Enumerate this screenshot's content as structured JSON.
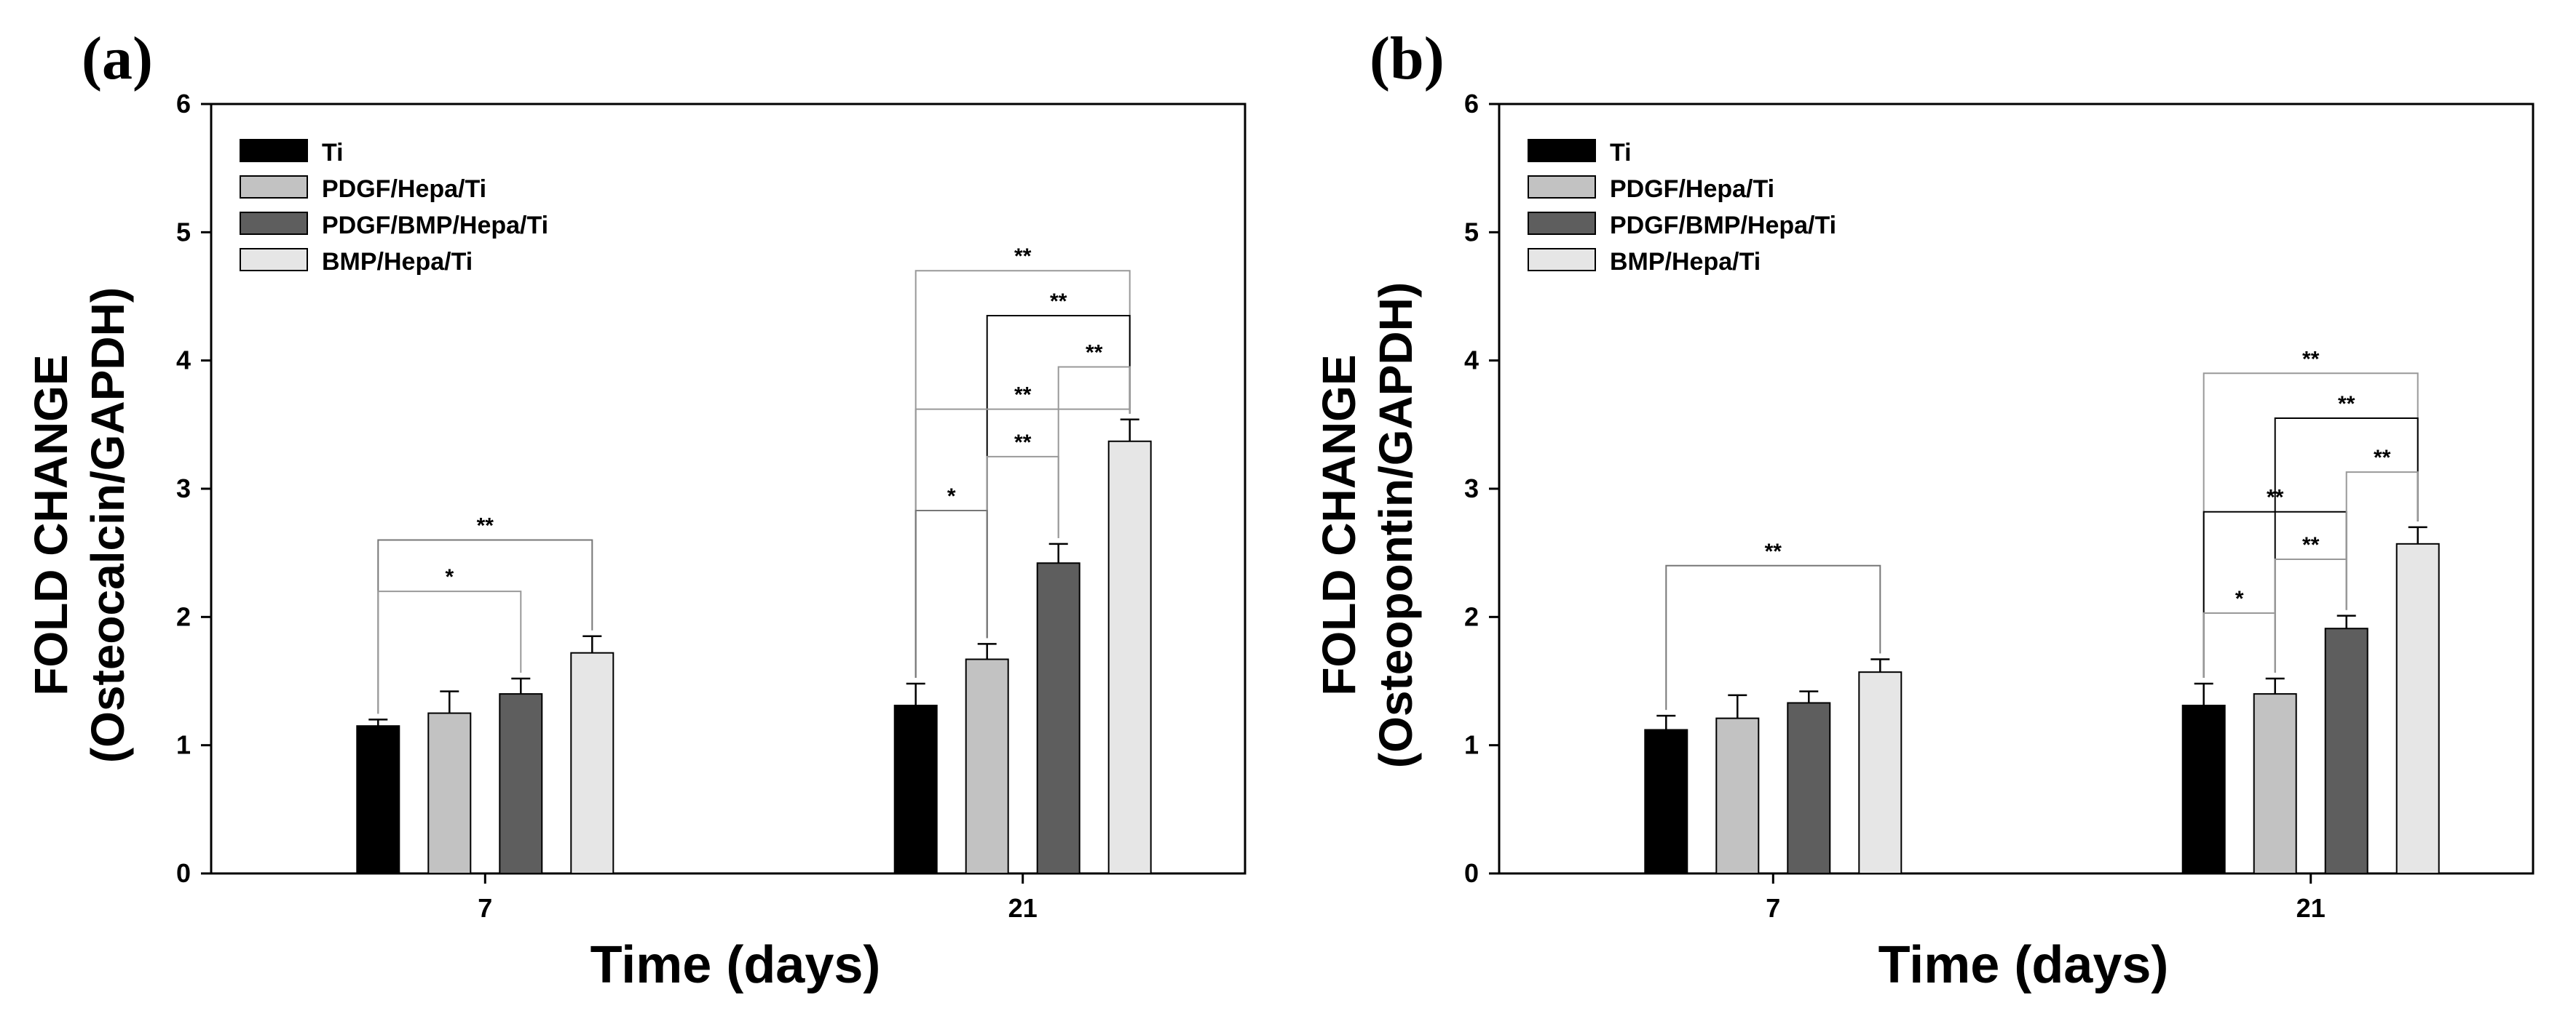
{
  "chart_data": [
    {
      "type": "bar",
      "panel_label": "(a)",
      "title": "",
      "xlabel": "Time (days)",
      "ylabel_line1": "FOLD CHANGE",
      "ylabel_line2": "(Osteocalcin/GAPDH)",
      "ylim": [
        0,
        6
      ],
      "yticks": [
        "0",
        "1",
        "2",
        "3",
        "4",
        "5",
        "6"
      ],
      "categories": [
        "7",
        "21"
      ],
      "legend_position": "top-left",
      "series": [
        {
          "name": "Ti",
          "color": "#000000",
          "values": [
            1.15,
            1.31
          ],
          "errors": [
            0.05,
            0.17
          ]
        },
        {
          "name": "PDGF/Hepa/Ti",
          "color": "#c2c2c2",
          "values": [
            1.25,
            1.67
          ],
          "errors": [
            0.17,
            0.12
          ]
        },
        {
          "name": "PDGF/BMP/Hepa/Ti",
          "color": "#5e5e5e",
          "values": [
            1.4,
            2.42
          ],
          "errors": [
            0.12,
            0.15
          ]
        },
        {
          "name": "BMP/Hepa/Ti",
          "color": "#e6e6e6",
          "values": [
            1.72,
            3.37
          ],
          "errors": [
            0.13,
            0.17
          ]
        }
      ],
      "significance": [
        {
          "category": 0,
          "from": 0,
          "to": 3,
          "level": 2.6,
          "label": "**",
          "color": "#777777"
        },
        {
          "category": 0,
          "from": 0,
          "to": 2,
          "level": 2.2,
          "label": "*",
          "color": "#999999"
        },
        {
          "category": 1,
          "from": 0,
          "to": 3,
          "level": 4.7,
          "label": "**",
          "color": "#999999"
        },
        {
          "category": 1,
          "from": 1,
          "to": 3,
          "level": 4.35,
          "label": "**",
          "color": "#000000"
        },
        {
          "category": 1,
          "from": 0,
          "to": 3,
          "level": 3.62,
          "label": "**",
          "color": "#999999"
        },
        {
          "category": 1,
          "from": 2,
          "to": 3,
          "level": 3.95,
          "label": "**",
          "color": "#999999"
        },
        {
          "category": 1,
          "from": 1,
          "to": 2,
          "level": 3.25,
          "label": "**",
          "color": "#999999"
        },
        {
          "category": 1,
          "from": 0,
          "to": 1,
          "level": 2.83,
          "label": "*",
          "color": "#777777"
        }
      ]
    },
    {
      "type": "bar",
      "panel_label": "(b)",
      "title": "",
      "xlabel": "Time (days)",
      "ylabel_line1": "FOLD CHANGE",
      "ylabel_line2": "(Osteopontin/GAPDH)",
      "ylim": [
        0,
        6
      ],
      "yticks": [
        "0",
        "1",
        "2",
        "3",
        "4",
        "5",
        "6"
      ],
      "categories": [
        "7",
        "21"
      ],
      "legend_position": "top-left",
      "series": [
        {
          "name": "Ti",
          "color": "#000000",
          "values": [
            1.12,
            1.31
          ],
          "errors": [
            0.11,
            0.17
          ]
        },
        {
          "name": "PDGF/Hepa/Ti",
          "color": "#c2c2c2",
          "values": [
            1.21,
            1.4
          ],
          "errors": [
            0.18,
            0.12
          ]
        },
        {
          "name": "PDGF/BMP/Hepa/Ti",
          "color": "#5e5e5e",
          "values": [
            1.33,
            1.91
          ],
          "errors": [
            0.09,
            0.1
          ]
        },
        {
          "name": "BMP/Hepa/Ti",
          "color": "#e6e6e6",
          "values": [
            1.57,
            2.57
          ],
          "errors": [
            0.1,
            0.13
          ]
        }
      ],
      "significance": [
        {
          "category": 0,
          "from": 0,
          "to": 3,
          "level": 2.4,
          "label": "**",
          "color": "#777777"
        },
        {
          "category": 1,
          "from": 0,
          "to": 3,
          "level": 3.9,
          "label": "**",
          "color": "#999999"
        },
        {
          "category": 1,
          "from": 1,
          "to": 3,
          "level": 3.55,
          "label": "**",
          "color": "#000000"
        },
        {
          "category": 1,
          "from": 0,
          "to": 2,
          "level": 2.82,
          "label": "**",
          "color": "#000000"
        },
        {
          "category": 1,
          "from": 2,
          "to": 3,
          "level": 3.13,
          "label": "**",
          "color": "#999999"
        },
        {
          "category": 1,
          "from": 1,
          "to": 2,
          "level": 2.45,
          "label": "**",
          "color": "#999999"
        },
        {
          "category": 1,
          "from": 0,
          "to": 1,
          "level": 2.03,
          "label": "*",
          "color": "#999999"
        }
      ]
    }
  ]
}
